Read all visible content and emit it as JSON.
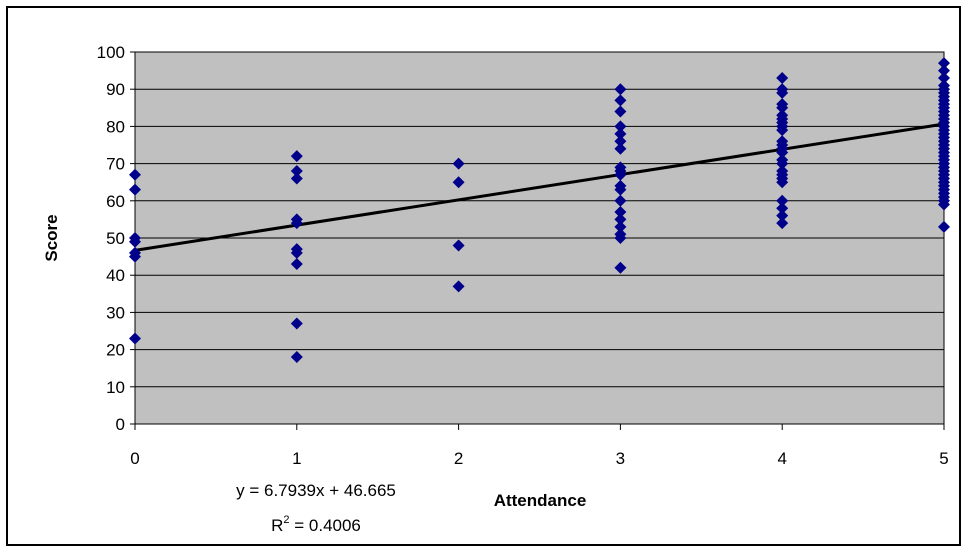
{
  "chart_data": {
    "type": "scatter",
    "title": "",
    "xlabel": "Attendance",
    "ylabel": "Score",
    "xlim": [
      0,
      5
    ],
    "ylim": [
      0,
      100
    ],
    "x_ticks": [
      "0",
      "1",
      "2",
      "3",
      "4",
      "5"
    ],
    "y_ticks": [
      "0",
      "10",
      "20",
      "30",
      "40",
      "50",
      "60",
      "70",
      "80",
      "90",
      "100"
    ],
    "grid": true,
    "legend": "none",
    "colors": {
      "plot_background": "#c0c0c0",
      "marker": "#00008b",
      "trendline": "#000000",
      "gridline": "#000000"
    },
    "series": [
      {
        "marker": "diamond",
        "points": [
          [
            0,
            67
          ],
          [
            0,
            63
          ],
          [
            0,
            50
          ],
          [
            0,
            49
          ],
          [
            0,
            46
          ],
          [
            0,
            45
          ],
          [
            0,
            23
          ],
          [
            1,
            72
          ],
          [
            1,
            68
          ],
          [
            1,
            66
          ],
          [
            1,
            55
          ],
          [
            1,
            54
          ],
          [
            1,
            47
          ],
          [
            1,
            46
          ],
          [
            1,
            43
          ],
          [
            1,
            27
          ],
          [
            1,
            18
          ],
          [
            2,
            70
          ],
          [
            2,
            65
          ],
          [
            2,
            48
          ],
          [
            2,
            37
          ],
          [
            3,
            90
          ],
          [
            3,
            87
          ],
          [
            3,
            84
          ],
          [
            3,
            80
          ],
          [
            3,
            78
          ],
          [
            3,
            76
          ],
          [
            3,
            74
          ],
          [
            3,
            69
          ],
          [
            3,
            68
          ],
          [
            3,
            67
          ],
          [
            3,
            64
          ],
          [
            3,
            63
          ],
          [
            3,
            60
          ],
          [
            3,
            57
          ],
          [
            3,
            55
          ],
          [
            3,
            53
          ],
          [
            3,
            51
          ],
          [
            3,
            50
          ],
          [
            3,
            42
          ],
          [
            4,
            93
          ],
          [
            4,
            90
          ],
          [
            4,
            89
          ],
          [
            4,
            86
          ],
          [
            4,
            85
          ],
          [
            4,
            83
          ],
          [
            4,
            82
          ],
          [
            4,
            81
          ],
          [
            4,
            80
          ],
          [
            4,
            79
          ],
          [
            4,
            76
          ],
          [
            4,
            75
          ],
          [
            4,
            74
          ],
          [
            4,
            73
          ],
          [
            4,
            71
          ],
          [
            4,
            70
          ],
          [
            4,
            68
          ],
          [
            4,
            67
          ],
          [
            4,
            66
          ],
          [
            4,
            65
          ],
          [
            4,
            60
          ],
          [
            4,
            58
          ],
          [
            4,
            56
          ],
          [
            4,
            54
          ],
          [
            5,
            97
          ],
          [
            5,
            95
          ],
          [
            5,
            93
          ],
          [
            5,
            91
          ],
          [
            5,
            90
          ],
          [
            5,
            89
          ],
          [
            5,
            88
          ],
          [
            5,
            87
          ],
          [
            5,
            86
          ],
          [
            5,
            85
          ],
          [
            5,
            84
          ],
          [
            5,
            83
          ],
          [
            5,
            82
          ],
          [
            5,
            81
          ],
          [
            5,
            80
          ],
          [
            5,
            79
          ],
          [
            5,
            78
          ],
          [
            5,
            77
          ],
          [
            5,
            76
          ],
          [
            5,
            75
          ],
          [
            5,
            74
          ],
          [
            5,
            73
          ],
          [
            5,
            72
          ],
          [
            5,
            71
          ],
          [
            5,
            70
          ],
          [
            5,
            69
          ],
          [
            5,
            68
          ],
          [
            5,
            67
          ],
          [
            5,
            66
          ],
          [
            5,
            65
          ],
          [
            5,
            64
          ],
          [
            5,
            63
          ],
          [
            5,
            62
          ],
          [
            5,
            61
          ],
          [
            5,
            60
          ],
          [
            5,
            59
          ],
          [
            5,
            53
          ]
        ]
      }
    ],
    "trendline": {
      "slope": 6.7939,
      "intercept": 46.665,
      "equation": "y = 6.7939x + 46.665",
      "r2_label": "R",
      "r2_sup": "2",
      "r2_value": " = 0.4006"
    }
  }
}
